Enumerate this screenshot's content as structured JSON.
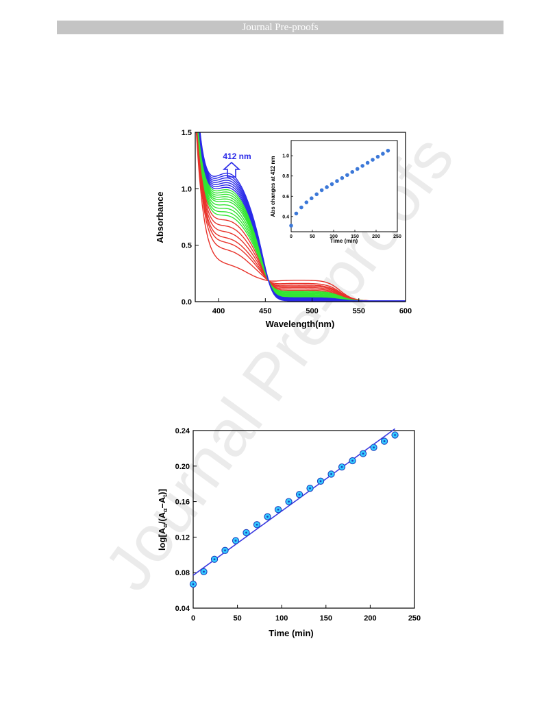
{
  "header": {
    "title": "Journal Pre-proofs"
  },
  "watermark": {
    "text": "Journal Pre-proofs"
  },
  "colors": {
    "red": "#e8322a",
    "green": "#33e633",
    "blue": "#2a2ae8",
    "marker_fill": "#3c78d8",
    "fit_line": "#3a3ae0",
    "cyan": "#33ccff"
  },
  "chart_data": [
    {
      "type": "line",
      "xlabel": "Wavelength(nm)",
      "ylabel": "Absorbance",
      "xlim": [
        375,
        600
      ],
      "ylim": [
        0.0,
        1.5
      ],
      "xticks": [
        "400",
        "450",
        "500",
        "550",
        "600"
      ],
      "yticks": [
        "0.0",
        "0.5",
        "1.0",
        "1.5"
      ],
      "annotation": "412 nm",
      "groups": [
        {
          "color": "red",
          "plateau_412": [
            0.28,
            0.4,
            0.46,
            0.5,
            0.55,
            0.6,
            0.65
          ]
        },
        {
          "color": "green",
          "plateau_412": [
            0.69,
            0.72,
            0.75,
            0.78,
            0.81,
            0.83,
            0.85,
            0.87,
            0.89,
            0.91
          ]
        },
        {
          "color": "blue",
          "plateau_412": [
            0.93,
            0.95,
            0.97,
            0.99,
            1.01,
            1.03,
            1.05
          ]
        }
      ]
    },
    {
      "type": "scatter",
      "inset": true,
      "xlabel": "Time (min)",
      "ylabel": "Abs changes at 412 nm",
      "xlim": [
        0,
        250
      ],
      "ylim": [
        0.25,
        1.15
      ],
      "xticks": [
        "0",
        "50",
        "100",
        "150",
        "200",
        "250"
      ],
      "yticks": [
        "0.4",
        "0.6",
        "0.8",
        "1.0"
      ],
      "x": [
        0,
        12,
        24,
        36,
        48,
        60,
        72,
        84,
        96,
        108,
        120,
        132,
        144,
        156,
        168,
        180,
        192,
        204,
        216,
        228
      ],
      "y": [
        0.31,
        0.43,
        0.49,
        0.54,
        0.58,
        0.62,
        0.66,
        0.69,
        0.72,
        0.75,
        0.78,
        0.81,
        0.84,
        0.87,
        0.9,
        0.93,
        0.96,
        0.99,
        1.02,
        1.05
      ]
    },
    {
      "type": "scatter",
      "xlabel": "Time (min)",
      "ylabel_parts": {
        "prefix": "log[A",
        "sub_alpha": "α",
        "mid": "/(A",
        "sub_alpha2": "α",
        "minus": "–A",
        "sub_t": "t",
        "suffix": ")]"
      },
      "xlim": [
        0,
        250
      ],
      "ylim": [
        0.04,
        0.24
      ],
      "xticks": [
        "0",
        "50",
        "100",
        "150",
        "200",
        "250"
      ],
      "yticks": [
        "0.04",
        "0.08",
        "0.12",
        "0.16",
        "0.20",
        "0.24"
      ],
      "x": [
        0,
        12,
        24,
        36,
        48,
        60,
        72,
        84,
        96,
        108,
        120,
        132,
        144,
        156,
        168,
        180,
        192,
        204,
        216,
        228
      ],
      "y": [
        0.067,
        0.081,
        0.095,
        0.105,
        0.116,
        0.125,
        0.134,
        0.143,
        0.151,
        0.16,
        0.168,
        0.175,
        0.183,
        0.191,
        0.199,
        0.206,
        0.214,
        0.221,
        0.228,
        0.235
      ],
      "fit": {
        "x": [
          0,
          228
        ],
        "y": [
          0.077,
          0.242
        ]
      }
    }
  ]
}
